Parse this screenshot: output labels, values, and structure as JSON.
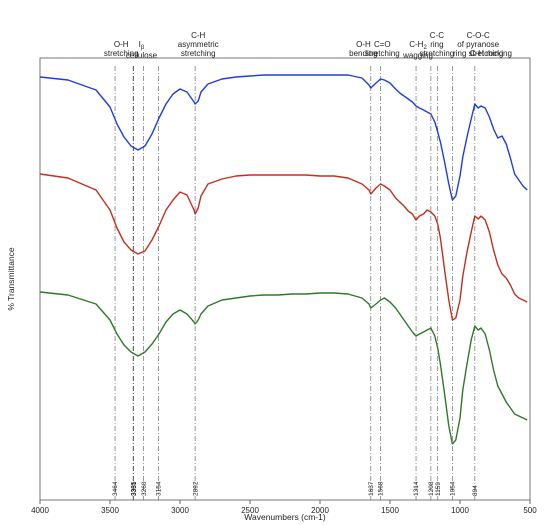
{
  "chart_data": {
    "type": "line",
    "xlabel": "Wavenumbers (cm-1)",
    "ylabel": "% Transmittance",
    "xlim": [
      4000,
      500
    ],
    "x_reversed": true,
    "x_ticks": [
      4000,
      3500,
      3000,
      2500,
      2000,
      1500,
      1000,
      500
    ],
    "grid": false,
    "legend": "none",
    "y_scale": "offset traces (arbitrary units)",
    "marker_lines": [
      {
        "x": 3464,
        "label": "3464"
      },
      {
        "x": 3335,
        "label": "3335"
      },
      {
        "x": 3331,
        "label": "3331"
      },
      {
        "x": 3260,
        "label": "3260"
      },
      {
        "x": 3154,
        "label": "3154"
      },
      {
        "x": 2892,
        "label": "2892"
      },
      {
        "x": 1637,
        "label": "1637"
      },
      {
        "x": 1568,
        "label": "1568"
      },
      {
        "x": 1314,
        "label": "1314"
      },
      {
        "x": 1208,
        "label": "1208"
      },
      {
        "x": 1159,
        "label": "1159"
      },
      {
        "x": 1054,
        "label": "1054"
      },
      {
        "x": 894,
        "label": "894"
      }
    ],
    "annotations": [
      {
        "x": 3420,
        "lines": [
          "O-H",
          "stretching"
        ]
      },
      {
        "x": 3275,
        "lines": [
          "I",
          "cellulose"
        ],
        "sub": "β"
      },
      {
        "x": 2870,
        "lines": [
          "C-H",
          "asymmetric",
          "stretching"
        ]
      },
      {
        "x": 1690,
        "lines": [
          "O-H",
          "bending"
        ]
      },
      {
        "x": 1555,
        "lines": [
          "C=O",
          "stretching"
        ]
      },
      {
        "x": 1300,
        "lines": [
          "C-H",
          "wagging"
        ],
        "sub": "2"
      },
      {
        "x": 1165,
        "lines": [
          "C-C",
          "ring",
          "stretching"
        ]
      },
      {
        "x": 870,
        "lines": [
          "C-O-C",
          "of pyranose",
          "ring stretching"
        ]
      },
      {
        "x": 780,
        "lines": [
          "C-H rocking"
        ]
      }
    ],
    "x_points": [
      4000,
      3800,
      3600,
      3500,
      3450,
      3400,
      3350,
      3300,
      3250,
      3200,
      3150,
      3100,
      3050,
      3000,
      2950,
      2900,
      2892,
      2870,
      2850,
      2800,
      2700,
      2600,
      2500,
      2400,
      2300,
      2200,
      2100,
      2000,
      1900,
      1800,
      1700,
      1650,
      1637,
      1600,
      1568,
      1540,
      1500,
      1460,
      1430,
      1400,
      1370,
      1340,
      1314,
      1290,
      1260,
      1235,
      1208,
      1180,
      1159,
      1140,
      1110,
      1080,
      1054,
      1030,
      1000,
      980,
      950,
      920,
      894,
      870,
      850,
      820,
      790,
      760,
      730,
      700,
      670,
      640,
      610,
      580,
      550,
      520
    ],
    "series": [
      {
        "color": "#1f3fd6",
        "values": [
          5,
          8,
          18,
          35,
          52,
          65,
          74,
          78,
          74,
          62,
          46,
          32,
          22,
          17,
          20,
          30,
          32,
          29,
          20,
          12,
          7,
          5,
          4,
          3,
          3,
          3,
          3,
          3,
          3,
          3,
          6,
          13,
          16,
          11,
          7,
          8,
          11,
          17,
          21,
          24,
          27,
          30,
          34,
          36,
          38,
          40,
          42,
          50,
          60,
          70,
          90,
          112,
          128,
          124,
          104,
          85,
          65,
          47,
          32,
          36,
          34,
          36,
          45,
          57,
          66,
          64,
          72,
          86,
          102,
          108,
          114,
          118
        ]
      },
      {
        "color": "#c03020",
        "values": [
          4,
          8,
          20,
          40,
          58,
          72,
          80,
          84,
          81,
          70,
          56,
          40,
          30,
          22,
          25,
          40,
          44,
          38,
          26,
          14,
          9,
          6,
          5,
          5,
          5,
          5,
          5,
          6,
          6,
          8,
          14,
          20,
          24,
          18,
          14,
          16,
          20,
          28,
          32,
          36,
          41,
          44,
          50,
          46,
          44,
          40,
          42,
          46,
          54,
          68,
          100,
          130,
          150,
          148,
          130,
          106,
          82,
          62,
          46,
          49,
          46,
          50,
          62,
          80,
          95,
          104,
          108,
          115,
          124,
          128,
          130,
          132
        ]
      },
      {
        "color": "#2e7a2a",
        "values": [
          2,
          5,
          14,
          30,
          44,
          55,
          62,
          66,
          62,
          54,
          44,
          32,
          24,
          20,
          24,
          32,
          34,
          30,
          24,
          16,
          10,
          8,
          6,
          5,
          5,
          4,
          4,
          3,
          3,
          4,
          8,
          14,
          18,
          14,
          10,
          8,
          12,
          18,
          24,
          30,
          36,
          42,
          46,
          44,
          42,
          40,
          38,
          46,
          58,
          74,
          104,
          136,
          154,
          150,
          128,
          100,
          74,
          50,
          36,
          40,
          38,
          44,
          60,
          80,
          96,
          104,
          112,
          118,
          124,
          126,
          128,
          130
        ]
      }
    ]
  }
}
